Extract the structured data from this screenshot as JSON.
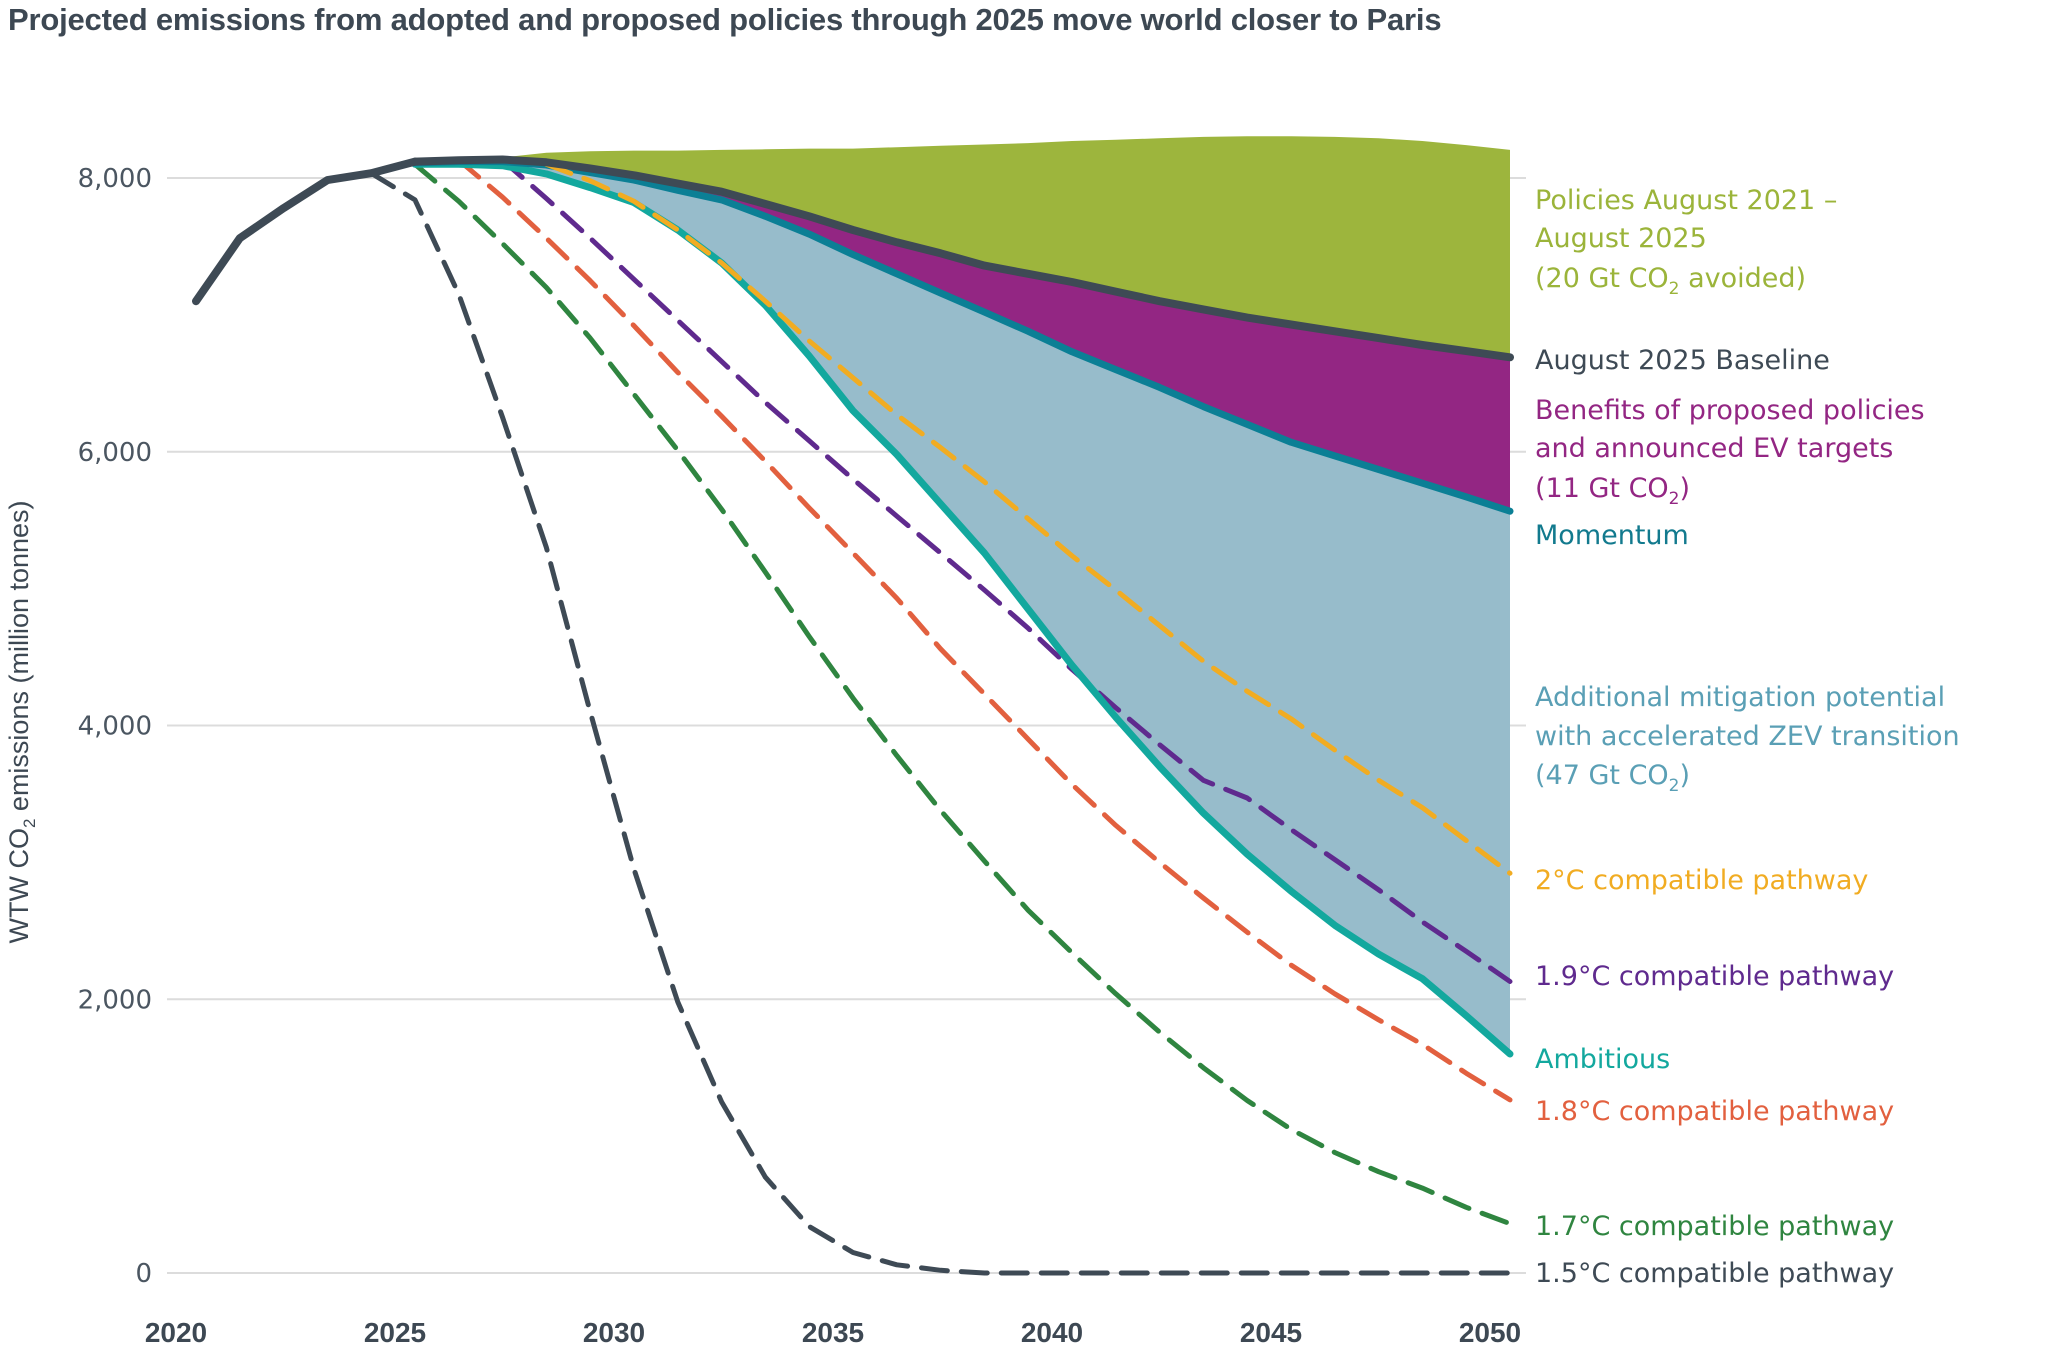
{
  "title": "Projected emissions from adopted and proposed policies through 2025 move world closer to Paris",
  "chart_data": {
    "type": "area",
    "title": "Projected emissions from adopted and proposed policies through 2025 move world closer to Paris",
    "xlabel": "",
    "ylabel": "WTW CO₂ emissions (million tonnes)",
    "ylabel_parts": [
      "WTW CO",
      "2",
      " emissions (million tonnes)"
    ],
    "xlim": [
      2020,
      2050
    ],
    "ylim": [
      0,
      8000
    ],
    "x_ticks": [
      2020,
      2025,
      2030,
      2035,
      2040,
      2045,
      2050
    ],
    "x_tick_labels": [
      "2020",
      "2025",
      "2030",
      "2035",
      "2040",
      "2045",
      "2050"
    ],
    "y_ticks": [
      0,
      2000,
      4000,
      6000,
      8000
    ],
    "y_tick_labels": [
      "0",
      "2,000",
      "4,000",
      "6,000",
      "8,000"
    ],
    "grid": "horizontal",
    "legend_placement": "right (direct labels)",
    "colors": {
      "historical": "#3e4a55",
      "policies_area": "#9db53d",
      "baseline": "#3e4a55",
      "proposed_area": "#932683",
      "momentum": "#0b7f95",
      "additional_area": "#97bccb",
      "ambitious": "#13a89e",
      "p20": "#f1ac22",
      "p19": "#5f2a8e",
      "p18": "#e2603f",
      "p17": "#2f8540",
      "p15": "#3e4a55"
    },
    "series": [
      {
        "key": "historical",
        "name": "Historical",
        "style": "solid",
        "x": [
          2020,
          2021,
          2022,
          2023,
          2024,
          2025
        ],
        "values": [
          7100,
          7560,
          7780,
          7985,
          8035,
          8120
        ]
      },
      {
        "key": "policies",
        "name": "Policies August 2021 – August 2025",
        "style": "area-top",
        "x": [
          2025,
          2026,
          2027,
          2028,
          2029,
          2030,
          2031,
          2032,
          2033,
          2034,
          2035,
          2036,
          2037,
          2038,
          2039,
          2040,
          2041,
          2042,
          2043,
          2044,
          2045,
          2046,
          2047,
          2048,
          2049,
          2050
        ],
        "values": [
          8120,
          8135,
          8150,
          8185,
          8195,
          8200,
          8200,
          8205,
          8210,
          8215,
          8215,
          8225,
          8235,
          8245,
          8255,
          8270,
          8280,
          8290,
          8300,
          8305,
          8305,
          8300,
          8290,
          8270,
          8240,
          8205
        ]
      },
      {
        "key": "baseline",
        "name": "August 2025 Baseline",
        "style": "solid",
        "x": [
          2025,
          2026,
          2027,
          2028,
          2029,
          2030,
          2031,
          2032,
          2033,
          2034,
          2035,
          2036,
          2037,
          2038,
          2039,
          2040,
          2041,
          2042,
          2043,
          2044,
          2045,
          2046,
          2047,
          2048,
          2049,
          2050
        ],
        "values": [
          8120,
          8130,
          8135,
          8115,
          8070,
          8020,
          7960,
          7900,
          7810,
          7720,
          7620,
          7530,
          7450,
          7360,
          7300,
          7240,
          7170,
          7100,
          7040,
          6980,
          6930,
          6880,
          6830,
          6780,
          6735,
          6690
        ]
      },
      {
        "key": "momentum",
        "name": "Momentum",
        "style": "solid",
        "x": [
          2025,
          2026,
          2027,
          2028,
          2029,
          2030,
          2031,
          2032,
          2033,
          2034,
          2035,
          2036,
          2037,
          2038,
          2039,
          2040,
          2041,
          2042,
          2043,
          2044,
          2045,
          2046,
          2047,
          2048,
          2049,
          2050
        ],
        "values": [
          8110,
          8120,
          8120,
          8095,
          8040,
          7985,
          7910,
          7840,
          7720,
          7590,
          7440,
          7300,
          7160,
          7020,
          6880,
          6730,
          6600,
          6470,
          6330,
          6200,
          6070,
          5970,
          5870,
          5770,
          5670,
          5566
        ]
      },
      {
        "key": "ambitious",
        "name": "Ambitious",
        "style": "solid",
        "x": [
          2025,
          2026,
          2027,
          2028,
          2029,
          2030,
          2031,
          2032,
          2033,
          2034,
          2035,
          2036,
          2037,
          2038,
          2039,
          2040,
          2041,
          2042,
          2043,
          2044,
          2045,
          2046,
          2047,
          2048,
          2049,
          2050
        ],
        "values": [
          8100,
          8100,
          8090,
          8030,
          7930,
          7820,
          7620,
          7380,
          7070,
          6700,
          6300,
          5980,
          5620,
          5260,
          4850,
          4440,
          4060,
          3700,
          3360,
          3060,
          2790,
          2540,
          2330,
          2150,
          1880,
          1600
        ]
      },
      {
        "key": "p20",
        "name": "2°C compatible pathway",
        "style": "dashed",
        "x": [
          2028,
          2029,
          2030,
          2031,
          2032,
          2033,
          2034,
          2035,
          2036,
          2037,
          2038,
          2039,
          2040,
          2041,
          2042,
          2043,
          2044,
          2045,
          2046,
          2047,
          2048,
          2049,
          2050
        ],
        "values": [
          8100,
          7980,
          7830,
          7620,
          7380,
          7100,
          6810,
          6540,
          6270,
          6030,
          5780,
          5510,
          5240,
          4990,
          4730,
          4470,
          4250,
          4050,
          3820,
          3600,
          3400,
          3160,
          2920
        ]
      },
      {
        "key": "p19",
        "name": "1.9°C compatible pathway",
        "style": "dashed",
        "x": [
          2027,
          2028,
          2029,
          2030,
          2031,
          2032,
          2033,
          2034,
          2035,
          2036,
          2037,
          2038,
          2039,
          2040,
          2041,
          2042,
          2043,
          2044,
          2045,
          2046,
          2047,
          2048,
          2049,
          2050
        ],
        "values": [
          8130,
          7850,
          7560,
          7260,
          6960,
          6660,
          6360,
          6080,
          5800,
          5530,
          5260,
          4990,
          4710,
          4410,
          4130,
          3860,
          3600,
          3470,
          3240,
          3020,
          2800,
          2565,
          2350,
          2130
        ]
      },
      {
        "key": "p18",
        "name": "1.8°C compatible pathway",
        "style": "dashed",
        "x": [
          2026,
          2027,
          2028,
          2029,
          2030,
          2031,
          2032,
          2033,
          2034,
          2035,
          2036,
          2037,
          2038,
          2039,
          2040,
          2041,
          2042,
          2043,
          2044,
          2045,
          2046,
          2047,
          2048,
          2049,
          2050
        ],
        "values": [
          8130,
          7860,
          7560,
          7250,
          6920,
          6580,
          6260,
          5930,
          5590,
          5260,
          4930,
          4560,
          4230,
          3900,
          3570,
          3270,
          3000,
          2740,
          2490,
          2250,
          2040,
          1850,
          1670,
          1460,
          1265
        ]
      },
      {
        "key": "p17",
        "name": "1.7°C compatible pathway",
        "style": "dashed",
        "x": [
          2025,
          2026,
          2027,
          2028,
          2029,
          2030,
          2031,
          2032,
          2033,
          2034,
          2035,
          2036,
          2037,
          2038,
          2039,
          2040,
          2041,
          2042,
          2043,
          2044,
          2045,
          2046,
          2047,
          2048,
          2049,
          2050
        ],
        "values": [
          8100,
          7830,
          7520,
          7200,
          6830,
          6420,
          6010,
          5580,
          5120,
          4650,
          4200,
          3780,
          3380,
          3010,
          2650,
          2340,
          2040,
          1760,
          1500,
          1260,
          1050,
          880,
          740,
          620,
          480,
          360
        ]
      },
      {
        "key": "p15",
        "name": "1.5°C compatible pathway",
        "style": "dashed",
        "x": [
          2024,
          2025,
          2026,
          2027,
          2028,
          2029,
          2030,
          2031,
          2032,
          2033,
          2034,
          2035,
          2036,
          2037,
          2038,
          2039,
          2040,
          2041,
          2042,
          2043,
          2044,
          2045,
          2046,
          2047,
          2048,
          2049,
          2050
        ],
        "values": [
          8035,
          7840,
          7150,
          6250,
          5300,
          4100,
          2950,
          1980,
          1250,
          700,
          340,
          150,
          60,
          20,
          0,
          0,
          0,
          0,
          0,
          0,
          0,
          0,
          0,
          0,
          0,
          0,
          0
        ]
      }
    ],
    "areas": [
      {
        "name": "Policies August 2021 – August 2025 (20 Gt CO₂ avoided)",
        "upper": "policies",
        "lower": "baseline",
        "color": "#9db53d"
      },
      {
        "name": "Benefits of proposed policies and announced EV targets (11 Gt CO₂)",
        "upper": "baseline",
        "lower": "momentum",
        "color": "#932683"
      },
      {
        "name": "Additional mitigation potential with accelerated ZEV transition (47 Gt CO₂)",
        "upper": "momentum",
        "lower": "ambitious",
        "color": "#97bccb"
      }
    ],
    "legend": [
      {
        "key": "policies",
        "color": "#9bb43a",
        "lines": [
          [
            "Policies August 2021 –"
          ],
          [
            "August 2025"
          ],
          [
            "(20 Gt CO",
            "2",
            " avoided)"
          ]
        ]
      },
      {
        "key": "baseline",
        "color": "#3e4a55",
        "lines": [
          [
            "August 2025 Baseline"
          ]
        ]
      },
      {
        "key": "proposed",
        "color": "#932683",
        "lines": [
          [
            "Benefits of proposed policies"
          ],
          [
            "and announced EV targets"
          ],
          [
            "(11 Gt CO",
            "2",
            ")"
          ]
        ]
      },
      {
        "key": "momentum",
        "color": "#127a8e",
        "lines": [
          [
            "Momentum"
          ]
        ]
      },
      {
        "key": "additional",
        "color": "#5a9fb5",
        "lines": [
          [
            "Additional mitigation potential"
          ],
          [
            "with accelerated ZEV transition"
          ],
          [
            "(47 Gt CO",
            "2",
            ")"
          ]
        ]
      },
      {
        "key": "p20",
        "color": "#f1ac22",
        "lines": [
          [
            "2°C compatible pathway"
          ]
        ]
      },
      {
        "key": "p19",
        "color": "#5f2a8e",
        "lines": [
          [
            "1.9°C compatible pathway"
          ]
        ]
      },
      {
        "key": "ambitious",
        "color": "#13a89e",
        "lines": [
          [
            "Ambitious"
          ]
        ]
      },
      {
        "key": "p18",
        "color": "#e2603f",
        "lines": [
          [
            "1.8°C compatible pathway"
          ]
        ]
      },
      {
        "key": "p17",
        "color": "#2f8540",
        "lines": [
          [
            "1.7°C compatible pathway"
          ]
        ]
      },
      {
        "key": "p15",
        "color": "#3e4a55",
        "lines": [
          [
            "1.5°C compatible pathway"
          ]
        ]
      }
    ]
  }
}
